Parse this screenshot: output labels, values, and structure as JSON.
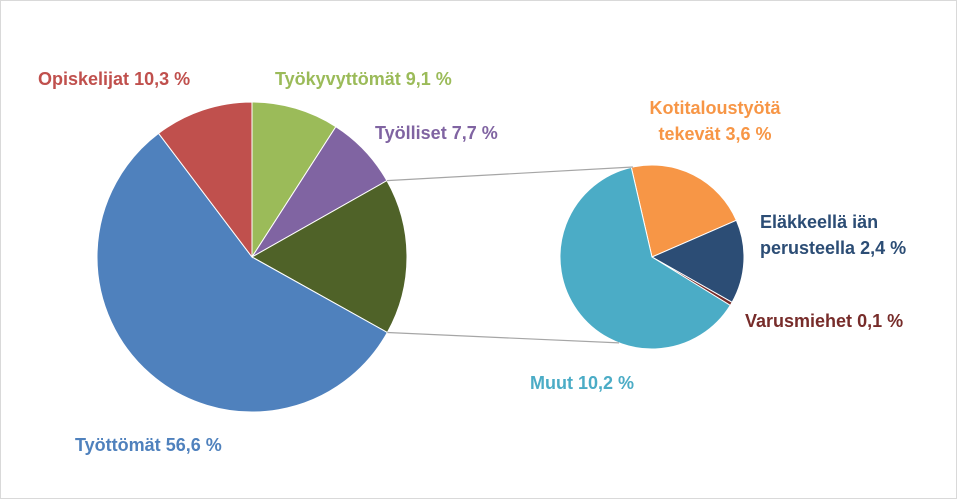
{
  "chart_data": {
    "type": "pie",
    "categories": [
      "Työkyvyttömät",
      "Työlliset",
      null,
      "Työttömät",
      "Opiskelijat"
    ],
    "values": [
      9.1,
      7.7,
      16.3,
      56.6,
      10.3
    ],
    "value_labels": [
      "9,1 %",
      "7,7 %",
      null,
      "56,6 %",
      "10,3 %"
    ],
    "colors": [
      "#9bbb59",
      "#8064a2",
      "#4f6228",
      "#4f81bd",
      "#c0504d"
    ],
    "secondary": {
      "categories": [
        "Kotitaloustyötä tekevät",
        "Eläkkeellä iän perusteella",
        "Varusmiehet",
        "Muut"
      ],
      "values": [
        3.6,
        2.4,
        0.1,
        10.2
      ],
      "value_labels": [
        "3,6 %",
        "2,4 %",
        "0,1 %",
        "10,2 %"
      ],
      "colors": [
        "#f79646",
        "#2c4d75",
        "#772c2a",
        "#4bacc6"
      ]
    }
  }
}
